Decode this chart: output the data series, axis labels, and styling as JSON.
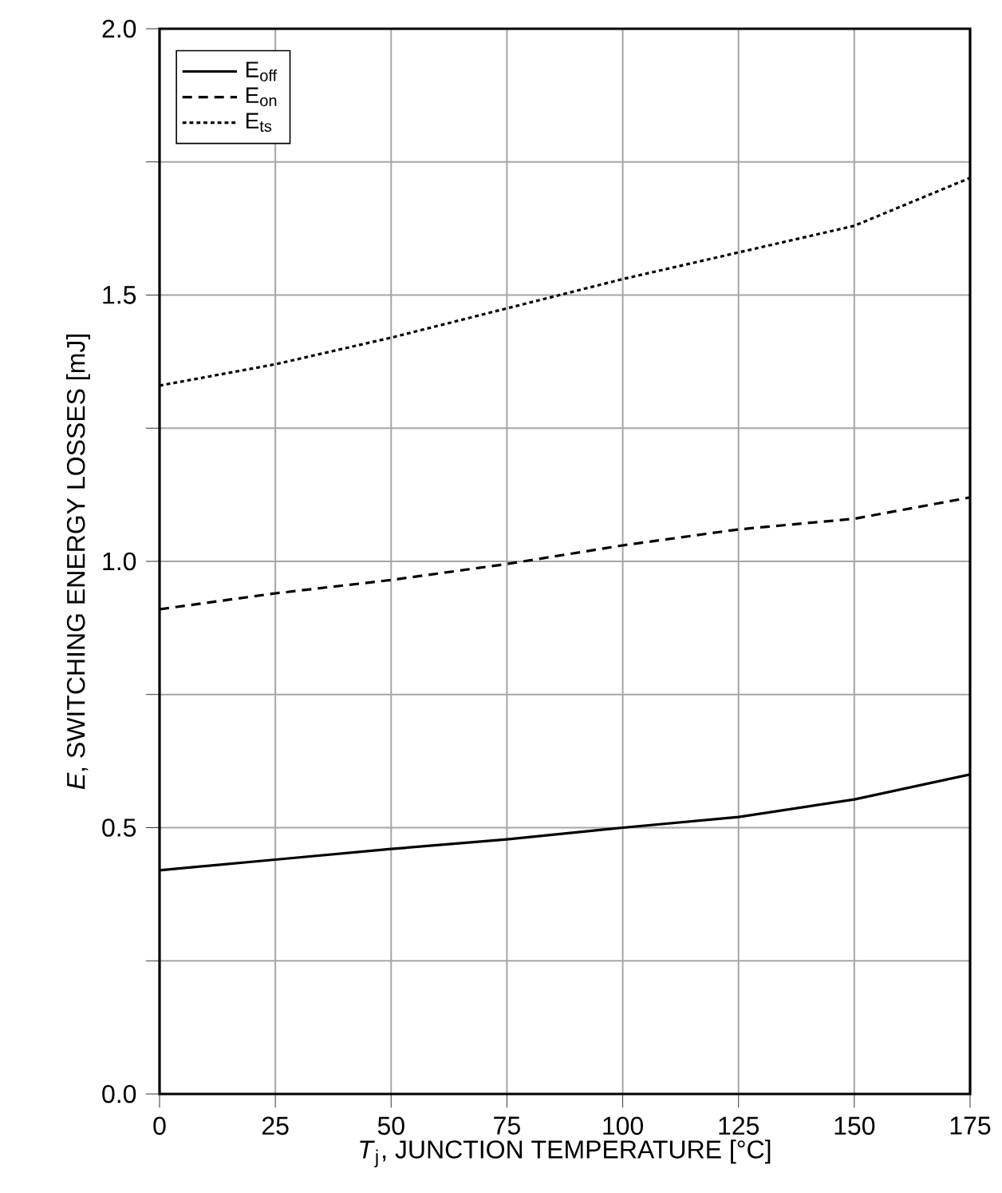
{
  "chart_data": {
    "type": "line",
    "xlabel": "*T*$_{j}$, JUNCTION TEMPERATURE [°C]",
    "ylabel": "*E*, SWITCHING ENERGY LOSSES [mJ]",
    "x": [
      0,
      25,
      50,
      75,
      100,
      125,
      150,
      175
    ],
    "series": [
      {
        "name": "E$_{off}$",
        "color": "#000000",
        "line_style": "solid",
        "values": [
          0.42,
          0.44,
          0.46,
          0.478,
          0.5,
          0.52,
          0.553,
          0.6
        ]
      },
      {
        "name": "E$_{on}$",
        "color": "#000000",
        "line_style": "dashed",
        "values": [
          0.91,
          0.94,
          0.965,
          0.995,
          1.03,
          1.06,
          1.08,
          1.12
        ]
      },
      {
        "name": "E$_{ts}$",
        "color": "#000000",
        "line_style": "dotted",
        "values": [
          1.33,
          1.37,
          1.42,
          1.475,
          1.53,
          1.58,
          1.63,
          1.72
        ]
      }
    ],
    "xlim": [
      0,
      175
    ],
    "xticks": [
      0,
      25,
      50,
      75,
      100,
      125,
      150,
      175
    ],
    "ylim": [
      0,
      2
    ],
    "yticks": [
      {
        "value": 0,
        "label": "0.0"
      },
      {
        "value": 0.25,
        "label": null
      },
      {
        "value": 0.5,
        "label": "0.5"
      },
      {
        "value": 0.75,
        "label": null
      },
      {
        "value": 1,
        "label": "1.0"
      },
      {
        "value": 1.25,
        "label": null
      },
      {
        "value": 1.5,
        "label": "1.5"
      },
      {
        "value": 1.75,
        "label": null
      },
      {
        "value": 2,
        "label": "2.0"
      }
    ],
    "grid": true,
    "legend": "top left"
  }
}
